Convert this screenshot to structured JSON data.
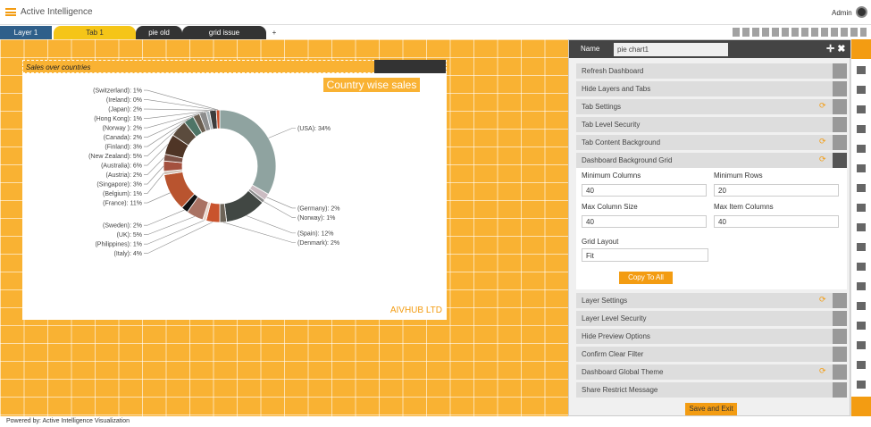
{
  "header": {
    "app_title": "Active Intelligence",
    "user": "Admin"
  },
  "tabs": [
    "Layer 1",
    "Tab 1",
    "pie old",
    "grid issue",
    "+"
  ],
  "widget": {
    "title": "Sales over countries",
    "brand": "AIVHUB LTD"
  },
  "chart_data": {
    "type": "donut",
    "title": "Country wise sales",
    "values": [
      34,
      2,
      1,
      12,
      2,
      4,
      1,
      5,
      2,
      11,
      1,
      3,
      2,
      6,
      5,
      3,
      2,
      2,
      1,
      2,
      0,
      1
    ],
    "value_labels": [
      "(USA): 34%",
      "(Germany): 2%",
      "(Norway): 1%",
      "(Spain): 12%",
      "(Denmark): 2%",
      "(Italy): 4%",
      "(Philippines): 1%",
      "(UK): 5%",
      "(Sweden): 2%",
      "(France): 11%",
      "(Belgium): 1%",
      "(Singapore): 3%",
      "(Austria): 2%",
      "(Australia): 6%",
      "(New Zealand): 5%",
      "(Finland): 3%",
      "(Canada): 2%",
      "(Norway ): 2%",
      "(Hong Kong): 1%",
      "(Japan): 2%",
      "(Ireland): 0%",
      "(Switzerland): 1%"
    ],
    "colors": [
      "#8fa3a0",
      "#cbbcc2",
      "#8a8a8a",
      "#414743",
      "#6d6458",
      "#c9532d",
      "#e9d7cb",
      "#a97263",
      "#121212",
      "#b9542f",
      "#d3c4b9",
      "#a4513f",
      "#7d5246",
      "#4f3526",
      "#5b4b3d",
      "#4f7567",
      "#6b5e50",
      "#8d8d8d",
      "#aab4b8",
      "#3d3d3d",
      "#222222",
      "#c8502e"
    ]
  },
  "panel": {
    "name_label": "Name",
    "name_value": "pie chart1",
    "sections_before": [
      "Refresh Dashboard",
      "Hide Layers and Tabs",
      "Tab Settings",
      "Tab Level Security",
      "Tab Content Background",
      "Dashboard Background Grid"
    ],
    "fields": [
      {
        "label": "Minimum Columns",
        "value": "40"
      },
      {
        "label": "Minimum Rows",
        "value": "20"
      },
      {
        "label": "Max Column Size",
        "value": "40"
      },
      {
        "label": "Max Item Columns",
        "value": "40"
      }
    ],
    "grid_layout_label": "Grid Layout",
    "grid_layout_value": "Fit",
    "copy_button": "Copy To All",
    "sections_after": [
      "Layer Settings",
      "Layer Level Security",
      "Hide Preview Options",
      "Confirm Clear Filter",
      "Dashboard Global Theme",
      "Share Restrict Message"
    ],
    "save_button": "Save and Exit"
  },
  "footer": "Powered by: Active Intelligence Visualization"
}
